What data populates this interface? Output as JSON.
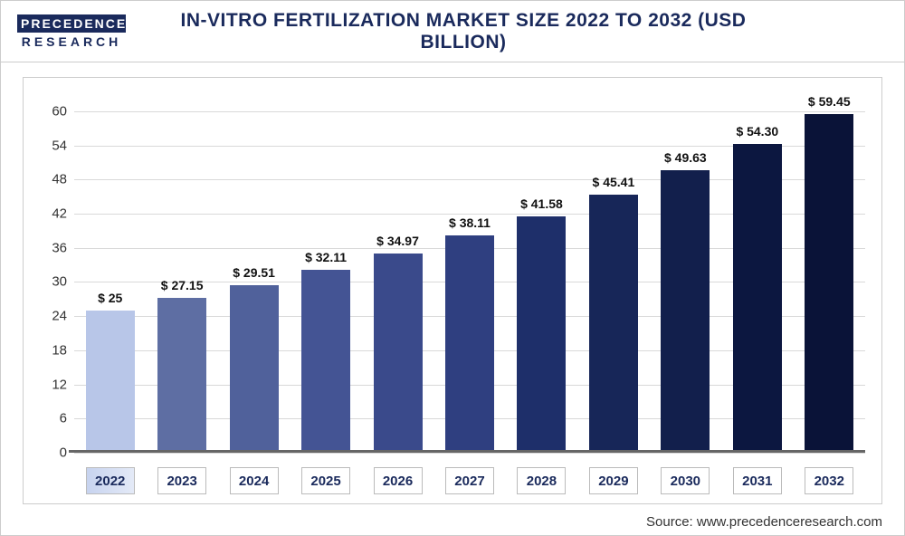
{
  "logo": {
    "top": "PRECEDENCE",
    "bottom": "RESEARCH"
  },
  "title": "IN-VITRO FERTILIZATION MARKET SIZE 2022 TO 2032 (USD BILLION)",
  "source": "Source: www.precedenceresearch.com",
  "chart": {
    "type": "bar",
    "ylim": [
      0,
      63
    ],
    "yticks": [
      0,
      6,
      12,
      18,
      24,
      30,
      36,
      42,
      48,
      54,
      60
    ],
    "grid_color": "#d9d9d9",
    "background_color": "#ffffff",
    "bar_width_ratio": 0.68,
    "label_fontsize": 14,
    "tick_fontsize": 15,
    "categories": [
      "2022",
      "2023",
      "2024",
      "2025",
      "2026",
      "2027",
      "2028",
      "2029",
      "2030",
      "2031",
      "2032"
    ],
    "values": [
      25,
      27.15,
      29.51,
      32.11,
      34.97,
      38.11,
      41.58,
      45.41,
      49.63,
      54.3,
      59.45
    ],
    "labels": [
      "$ 25",
      "$ 27.15",
      "$ 29.51",
      "$ 32.11",
      "$ 34.97",
      "$ 38.11",
      "$ 41.58",
      "$ 45.41",
      "$ 49.63",
      "$ 54.30",
      "$ 59.45"
    ],
    "bar_colors": [
      "#b8c6e8",
      "#5e6ea3",
      "#50619b",
      "#445494",
      "#3a4a8b",
      "#2f3f80",
      "#1e2f6a",
      "#172658",
      "#121f4c",
      "#0c1740",
      "#0a1338"
    ]
  }
}
